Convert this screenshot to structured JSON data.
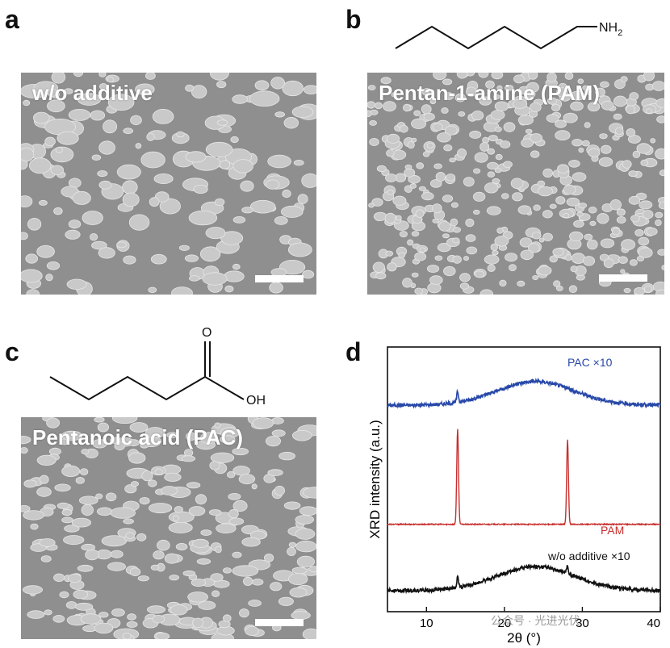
{
  "panels": {
    "a": {
      "letter": "a",
      "label": "w/o additive"
    },
    "b": {
      "letter": "b",
      "label": "Pentan-1-amine (PAM)",
      "molecule_group": "NH",
      "molecule_sub": "2"
    },
    "c": {
      "letter": "c",
      "label": "Pentanoic acid (PAC)",
      "molecule_o": "O",
      "molecule_oh": "OH"
    },
    "d": {
      "letter": "d"
    }
  },
  "colors": {
    "pac": "#2748a8",
    "pam": "#c8312f",
    "none": "#111111",
    "sem_bg": "#8f8f8f",
    "sem_grain": "#c9c9c9"
  },
  "watermark": "公众号 · 光进光伏",
  "chart_data": {
    "type": "line",
    "xlabel": "2θ (°)",
    "ylabel": "XRD intensity (a.u.)",
    "xlim": [
      5,
      40
    ],
    "x_ticks": [
      "10",
      "20",
      "30",
      "40"
    ],
    "y_ticks": [],
    "grid": false,
    "series": [
      {
        "name": "PAC ×10",
        "color": "#2748a8",
        "baseline": 0.78,
        "hump_center": 24,
        "hump_height": 0.09,
        "peaks": [
          {
            "x": 14.0,
            "height": 0.04
          }
        ]
      },
      {
        "name": "PAM",
        "color": "#c8312f",
        "baseline": 0.33,
        "hump_center": 24,
        "hump_height": 0.0,
        "peaks": [
          {
            "x": 14.0,
            "height": 0.36
          },
          {
            "x": 28.1,
            "height": 0.32
          }
        ]
      },
      {
        "name": "w/o additive ×10",
        "color": "#111111",
        "baseline": 0.08,
        "hump_center": 24,
        "hump_height": 0.09,
        "peaks": [
          {
            "x": 14.0,
            "height": 0.04
          },
          {
            "x": 28.1,
            "height": 0.03
          }
        ]
      }
    ]
  }
}
